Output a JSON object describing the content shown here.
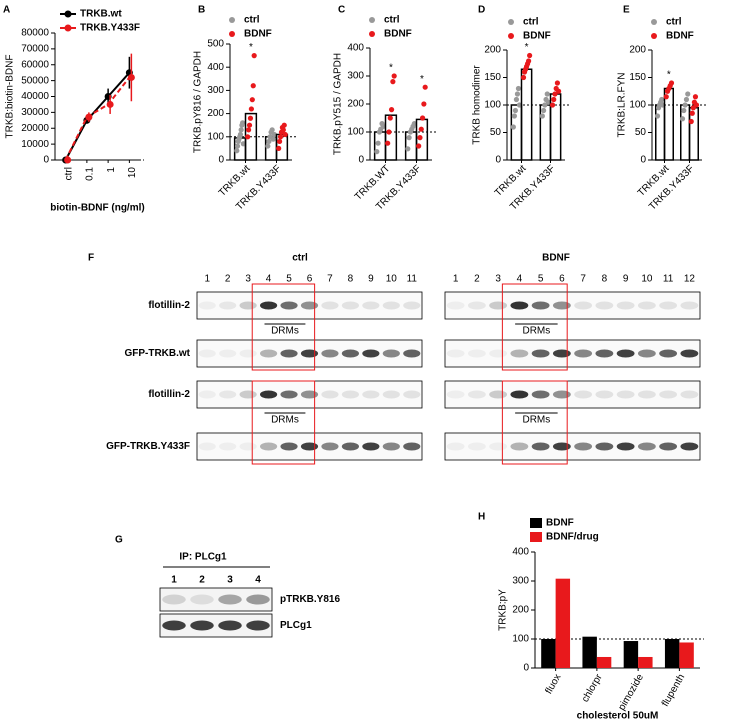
{
  "chart_data": [
    {
      "type": "line",
      "panel": "A",
      "ylabel": "TRKB:biotin-BDNF",
      "xlabel": "biotin-BDNF (ng/ml)",
      "categories": [
        "ctrl",
        "0.1",
        "1",
        "10"
      ],
      "series": [
        {
          "name": "TRKB.wt",
          "color": "#000000",
          "line_style": "solid",
          "values": [
            0,
            25000,
            40000,
            55000
          ],
          "errors": [
            0,
            2000,
            5000,
            10000
          ]
        },
        {
          "name": "TRKB.Y433F",
          "color": "#e8191c",
          "line_style": "dashed",
          "values": [
            0,
            27000,
            35000,
            52000
          ],
          "errors": [
            0,
            3000,
            6000,
            15000
          ]
        }
      ],
      "ylim": [
        0,
        80000
      ],
      "yticks": [
        0,
        10000,
        20000,
        30000,
        40000,
        50000,
        60000,
        70000,
        80000
      ],
      "hline": 0
    },
    {
      "type": "bar",
      "panel": "B",
      "ylabel": "TRKB.pY816 / GAPDH",
      "categories": [
        "TRKB.wt",
        "TRKB.Y433F"
      ],
      "series": [
        {
          "name": "ctrl",
          "color": "#999999",
          "values": [
            95,
            100
          ],
          "points": [
            [
              40,
              60,
              80,
              90,
              100,
              110,
              130,
              150,
              160,
              70
            ],
            [
              60,
              80,
              100,
              120,
              130,
              90,
              110
            ]
          ],
          "annotations": [
            null,
            null
          ]
        },
        {
          "name": "BDNF",
          "color": "#e8191c",
          "values": [
            200,
            110
          ],
          "points": [
            [
              100,
              130,
              150,
              180,
              220,
              260,
              320,
              450
            ],
            [
              50,
              80,
              100,
              120,
              140,
              130,
              150,
              110
            ]
          ],
          "annotations": [
            "*",
            null
          ]
        }
      ],
      "ylim": [
        0,
        500
      ],
      "yticks": [
        0,
        100,
        200,
        300,
        400,
        500
      ],
      "hline": 100
    },
    {
      "type": "bar",
      "panel": "C",
      "ylabel": "TRKB.pY515 / GAPDH",
      "categories": [
        "TRKB.WT",
        "TRKB.Y433F"
      ],
      "series": [
        {
          "name": "ctrl",
          "color": "#999999",
          "values": [
            100,
            100
          ],
          "points": [
            [
              30,
              60,
              100,
              110,
              130,
              120
            ],
            [
              40,
              80,
              100,
              110,
              120,
              130
            ]
          ],
          "annotations": [
            null,
            null
          ]
        },
        {
          "name": "BDNF",
          "color": "#e8191c",
          "values": [
            160,
            145
          ],
          "points": [
            [
              60,
              100,
              150,
              180,
              280,
              300
            ],
            [
              50,
              80,
              110,
              150,
              200,
              260
            ]
          ],
          "annotations": [
            "*",
            "*"
          ]
        }
      ],
      "ylim": [
        0,
        400
      ],
      "yticks": [
        0,
        100,
        200,
        300,
        400
      ],
      "hline": 100
    },
    {
      "type": "bar",
      "panel": "D",
      "ylabel": "TRKB homodimer",
      "categories": [
        "TRKB.wt",
        "TRKB.Y433F"
      ],
      "series": [
        {
          "name": "ctrl",
          "color": "#999999",
          "values": [
            100,
            100
          ],
          "points": [
            [
              60,
              80,
              90,
              110,
              120,
              130,
              100
            ],
            [
              80,
              90,
              100,
              110,
              120,
              105
            ]
          ],
          "annotations": [
            null,
            null
          ]
        },
        {
          "name": "BDNF",
          "color": "#e8191c",
          "values": [
            165,
            120
          ],
          "points": [
            [
              150,
              160,
              165,
              170,
              175,
              180,
              190
            ],
            [
              100,
              110,
              120,
              130,
              140,
              125
            ]
          ],
          "annotations": [
            "*",
            null
          ]
        }
      ],
      "ylim": [
        0,
        200
      ],
      "yticks": [
        0,
        50,
        100,
        150,
        200
      ],
      "hline": 100
    },
    {
      "type": "bar",
      "panel": "E",
      "ylabel": "TRKB:LR.FYN",
      "categories": [
        "TRKB.wt",
        "TRKB.Y433F"
      ],
      "series": [
        {
          "name": "ctrl",
          "color": "#999999",
          "values": [
            100,
            100
          ],
          "points": [
            [
              80,
              95,
              100,
              105,
              110,
              100
            ],
            [
              75,
              90,
              100,
              110,
              120
            ]
          ],
          "annotations": [
            null,
            null
          ]
        },
        {
          "name": "BDNF",
          "color": "#e8191c",
          "values": [
            130,
            95
          ],
          "points": [
            [
              115,
              125,
              130,
              135,
              140
            ],
            [
              70,
              85,
              95,
              105,
              115,
              100
            ]
          ],
          "annotations": [
            "*",
            null
          ]
        }
      ],
      "ylim": [
        0,
        200
      ],
      "yticks": [
        0,
        50,
        100,
        150,
        200
      ],
      "hline": 100
    },
    {
      "type": "bar",
      "panel": "H",
      "ylabel": "TRKB:pY",
      "xlabel": "cholesterol 50uM",
      "categories": [
        "fluox",
        "chlorpr",
        "pimozide",
        "flupenth"
      ],
      "series": [
        {
          "name": "BDNF",
          "color": "#000000",
          "values": [
            100,
            108,
            93,
            100
          ]
        },
        {
          "name": "BDNF/drug",
          "color": "#e8191c",
          "values": [
            308,
            38,
            38,
            88
          ]
        }
      ],
      "ylim": [
        0,
        400
      ],
      "yticks": [
        0,
        100,
        200,
        300,
        400
      ],
      "hline": 100
    }
  ],
  "blot_f": {
    "panel": "F",
    "groups": [
      {
        "title": "ctrl",
        "lanes": [
          "1",
          "2",
          "3",
          "4",
          "5",
          "6",
          "7",
          "8",
          "9",
          "10",
          "11"
        ]
      },
      {
        "title": "BDNF",
        "lanes": [
          "1",
          "2",
          "3",
          "4",
          "5",
          "6",
          "7",
          "8",
          "9",
          "10",
          "11",
          "12"
        ]
      }
    ],
    "rows": [
      "flotillin-2",
      "GFP-TRKB.wt",
      "flotillin-2",
      "GFP-TRKB.Y433F"
    ],
    "drm_label": "DRMs"
  },
  "blot_g": {
    "panel": "G",
    "title": "IP: PLCg1",
    "lanes": [
      "1",
      "2",
      "3",
      "4"
    ],
    "rows": [
      "pTRKB.Y816",
      "PLCg1"
    ]
  }
}
